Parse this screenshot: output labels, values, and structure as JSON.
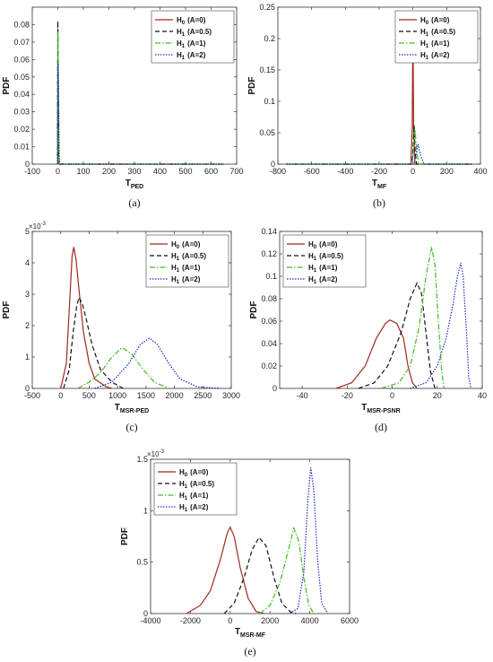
{
  "figure": {
    "legend_labels": [
      "H_0 (A=0)",
      "H_1 (A=0.5)",
      "H_1 (A=1)",
      "H_1 (A=2)"
    ],
    "series_colors": [
      "#a0281f",
      "#111111",
      "#44bb22",
      "#1a2ccc"
    ],
    "series_styles": [
      "solid",
      "dashed",
      "dashdot",
      "dotted"
    ]
  },
  "chart_data": [
    {
      "type": "line",
      "caption": "(a)",
      "xlabel": "T",
      "xlabel_sub": "PED",
      "ylabel": "PDF",
      "exponent": "",
      "xlim": [
        -100,
        700
      ],
      "ylim": [
        0,
        0.09
      ],
      "xticks": [
        "-100",
        "0",
        "100",
        "200",
        "300",
        "400",
        "500",
        "600",
        "700"
      ],
      "yticks": [
        "0",
        "0.01",
        "0.02",
        "0.03",
        "0.04",
        "0.05",
        "0.06",
        "0.07",
        "0.08"
      ],
      "legend_position": "top-right",
      "series": [
        {
          "name": "H_0 (A=0)",
          "points": [
            [
              -1,
              0
            ],
            [
              0,
              0.061
            ],
            [
              1,
              0.055
            ],
            [
              3,
              0.002
            ],
            [
              5,
              0
            ],
            [
              650,
              0
            ]
          ]
        },
        {
          "name": "H_1 (A=0.5)",
          "points": [
            [
              -1,
              0
            ],
            [
              0,
              0.082
            ],
            [
              1,
              0.07
            ],
            [
              3,
              0.003
            ],
            [
              5,
              0
            ],
            [
              650,
              0
            ]
          ]
        },
        {
          "name": "H_1 (A=1)",
          "points": [
            [
              -1,
              0
            ],
            [
              0.5,
              0.076
            ],
            [
              1.5,
              0.06
            ],
            [
              4,
              0.002
            ],
            [
              6,
              0
            ],
            [
              650,
              0
            ]
          ]
        },
        {
          "name": "H_1 (A=2)",
          "points": [
            [
              -1,
              0
            ],
            [
              1,
              0.058
            ],
            [
              2.5,
              0.045
            ],
            [
              6,
              0.002
            ],
            [
              9,
              0
            ],
            [
              650,
              0
            ]
          ]
        }
      ]
    },
    {
      "type": "line",
      "caption": "(b)",
      "xlabel": "T",
      "xlabel_sub": "MF",
      "ylabel": "PDF",
      "exponent": "",
      "xlim": [
        -800,
        400
      ],
      "ylim": [
        0,
        0.25
      ],
      "xticks": [
        "-800",
        "-600",
        "-400",
        "-200",
        "0",
        "200",
        "400"
      ],
      "yticks": [
        "0",
        "0.05",
        "0.1",
        "0.15",
        "0.2",
        "0.25"
      ],
      "legend_position": "top-right",
      "series": [
        {
          "name": "H_0 (A=0)",
          "points": [
            [
              -750,
              0
            ],
            [
              -12,
              0
            ],
            [
              -4,
              0.06
            ],
            [
              0,
              0.235
            ],
            [
              4,
              0.06
            ],
            [
              12,
              0
            ],
            [
              350,
              0
            ]
          ]
        },
        {
          "name": "H_1 (A=0.5)",
          "points": [
            [
              -750,
              0
            ],
            [
              -5,
              0
            ],
            [
              2,
              0.03
            ],
            [
              7,
              0.062
            ],
            [
              13,
              0.02
            ],
            [
              22,
              0
            ],
            [
              350,
              0
            ]
          ]
        },
        {
          "name": "H_1 (A=1)",
          "points": [
            [
              -750,
              0
            ],
            [
              -3,
              0
            ],
            [
              5,
              0.03
            ],
            [
              13,
              0.055
            ],
            [
              22,
              0.02
            ],
            [
              35,
              0
            ],
            [
              350,
              0
            ]
          ]
        },
        {
          "name": "H_1 (A=2)",
          "points": [
            [
              -750,
              0
            ],
            [
              5,
              0
            ],
            [
              18,
              0.015
            ],
            [
              30,
              0.032
            ],
            [
              45,
              0.015
            ],
            [
              65,
              0
            ],
            [
              350,
              0
            ]
          ]
        }
      ]
    },
    {
      "type": "line",
      "caption": "(c)",
      "xlabel": "T",
      "xlabel_sub": "MSR-PED",
      "ylabel": "PDF",
      "exponent": "10",
      "exponent_power": "-3",
      "xlim": [
        -500,
        3000
      ],
      "ylim": [
        0,
        0.005
      ],
      "xticks": [
        "-500",
        "0",
        "500",
        "1000",
        "1500",
        "2000",
        "2500",
        "3000"
      ],
      "yticks": [
        "0",
        "1",
        "2",
        "3",
        "4",
        "5"
      ],
      "legend_position": "top-right",
      "series": [
        {
          "name": "H_0 (A=0)",
          "points": [
            [
              0,
              0
            ],
            [
              100,
              0.0008
            ],
            [
              150,
              0.0025
            ],
            [
              200,
              0.0042
            ],
            [
              230,
              0.0045
            ],
            [
              270,
              0.0041
            ],
            [
              330,
              0.003
            ],
            [
              400,
              0.0018
            ],
            [
              500,
              0.0008
            ],
            [
              600,
              0.0003
            ],
            [
              800,
              5e-05
            ],
            [
              900,
              0
            ]
          ]
        },
        {
          "name": "H_1 (A=0.5)",
          "points": [
            [
              50,
              0
            ],
            [
              150,
              0.0006
            ],
            [
              220,
              0.0018
            ],
            [
              280,
              0.0026
            ],
            [
              320,
              0.0029
            ],
            [
              380,
              0.0027
            ],
            [
              450,
              0.0022
            ],
            [
              550,
              0.0014
            ],
            [
              700,
              0.0006
            ],
            [
              900,
              0.0002
            ],
            [
              1100,
              0
            ]
          ]
        },
        {
          "name": "H_1 (A=1)",
          "points": [
            [
              300,
              0
            ],
            [
              500,
              0.0002
            ],
            [
              700,
              0.0005
            ],
            [
              900,
              0.001
            ],
            [
              1080,
              0.0013
            ],
            [
              1250,
              0.0011
            ],
            [
              1450,
              0.0006
            ],
            [
              1650,
              0.0002
            ],
            [
              1900,
              0
            ]
          ]
        },
        {
          "name": "H_1 (A=2)",
          "points": [
            [
              600,
              0
            ],
            [
              900,
              0.0002
            ],
            [
              1200,
              0.0008
            ],
            [
              1400,
              0.0014
            ],
            [
              1560,
              0.0016
            ],
            [
              1700,
              0.0014
            ],
            [
              1900,
              0.0008
            ],
            [
              2100,
              0.0003
            ],
            [
              2400,
              5e-05
            ],
            [
              2800,
              0
            ]
          ]
        }
      ]
    },
    {
      "type": "line",
      "caption": "(d)",
      "xlabel": "T",
      "xlabel_sub": "MSR-PSNR",
      "ylabel": "PDF",
      "exponent": "",
      "xlim": [
        -50,
        40
      ],
      "ylim": [
        0,
        0.14
      ],
      "xticks": [
        "-40",
        "-20",
        "0",
        "20",
        "40"
      ],
      "yticks": [
        "0",
        "0.02",
        "0.04",
        "0.06",
        "0.08",
        "0.1",
        "0.12",
        "0.14"
      ],
      "legend_position": "top-left",
      "series": [
        {
          "name": "H_0 (A=0)",
          "points": [
            [
              -25,
              0
            ],
            [
              -18,
              0.005
            ],
            [
              -12,
              0.02
            ],
            [
              -7,
              0.045
            ],
            [
              -3,
              0.058
            ],
            [
              -1,
              0.061
            ],
            [
              2,
              0.058
            ],
            [
              5,
              0.045
            ],
            [
              7,
              0.02
            ],
            [
              9,
              0.005
            ],
            [
              11,
              0
            ]
          ]
        },
        {
          "name": "H_1 (A=0.5)",
          "points": [
            [
              -15,
              0
            ],
            [
              -8,
              0.005
            ],
            [
              -2,
              0.02
            ],
            [
              4,
              0.05
            ],
            [
              8,
              0.08
            ],
            [
              11,
              0.094
            ],
            [
              13,
              0.085
            ],
            [
              15,
              0.05
            ],
            [
              17,
              0.015
            ],
            [
              19,
              0
            ]
          ]
        },
        {
          "name": "H_1 (A=1)",
          "points": [
            [
              -5,
              0
            ],
            [
              3,
              0.005
            ],
            [
              8,
              0.02
            ],
            [
              12,
              0.055
            ],
            [
              15,
              0.1
            ],
            [
              17.5,
              0.126
            ],
            [
              19,
              0.11
            ],
            [
              20.5,
              0.06
            ],
            [
              22,
              0.015
            ],
            [
              23,
              0
            ]
          ]
        },
        {
          "name": "H_1 (A=2)",
          "points": [
            [
              8,
              0
            ],
            [
              15,
              0.005
            ],
            [
              20,
              0.02
            ],
            [
              24,
              0.045
            ],
            [
              27,
              0.075
            ],
            [
              29,
              0.1
            ],
            [
              30.5,
              0.112
            ],
            [
              31.5,
              0.1
            ],
            [
              33,
              0.05
            ],
            [
              34,
              0.01
            ],
            [
              35,
              0
            ]
          ]
        }
      ]
    },
    {
      "type": "line",
      "caption": "(e)",
      "xlabel": "T",
      "xlabel_sub": "MSR-MF",
      "ylabel": "PDF",
      "exponent": "10",
      "exponent_power": "-3",
      "xlim": [
        -4000,
        6000
      ],
      "ylim": [
        0,
        0.0015
      ],
      "xticks": [
        "-4000",
        "-2000",
        "0",
        "2000",
        "4000",
        "6000"
      ],
      "yticks": [
        "0",
        "0.5",
        "1",
        "1.5"
      ],
      "legend_position": "top-left",
      "series": [
        {
          "name": "H_0 (A=0)",
          "points": [
            [
              -2200,
              0
            ],
            [
              -1500,
              8e-05
            ],
            [
              -1000,
              0.00022
            ],
            [
              -500,
              0.00052
            ],
            [
              -150,
              0.00078
            ],
            [
              0,
              0.00084
            ],
            [
              200,
              0.00075
            ],
            [
              500,
              0.00045
            ],
            [
              900,
              0.00015
            ],
            [
              1300,
              2e-05
            ],
            [
              1700,
              0
            ]
          ]
        },
        {
          "name": "H_1 (A=0.5)",
          "points": [
            [
              -300,
              0
            ],
            [
              200,
              0.0001
            ],
            [
              700,
              0.00035
            ],
            [
              1100,
              0.00062
            ],
            [
              1450,
              0.00074
            ],
            [
              1800,
              0.00066
            ],
            [
              2200,
              0.00035
            ],
            [
              2600,
              0.0001
            ],
            [
              3000,
              2e-05
            ],
            [
              3300,
              0
            ]
          ]
        },
        {
          "name": "H_1 (A=1)",
          "points": [
            [
              1500,
              0
            ],
            [
              2000,
              8e-05
            ],
            [
              2500,
              0.0003
            ],
            [
              2900,
              0.0006
            ],
            [
              3200,
              0.00083
            ],
            [
              3450,
              0.0007
            ],
            [
              3700,
              0.00035
            ],
            [
              3950,
              8e-05
            ],
            [
              4200,
              0
            ]
          ]
        },
        {
          "name": "H_1 (A=2)",
          "points": [
            [
              3000,
              0
            ],
            [
              3400,
              5e-05
            ],
            [
              3700,
              0.0004
            ],
            [
              3900,
              0.0011
            ],
            [
              4050,
              0.00142
            ],
            [
              4200,
              0.0012
            ],
            [
              4400,
              0.0005
            ],
            [
              4600,
              0.0001
            ],
            [
              4900,
              0
            ]
          ]
        }
      ]
    }
  ]
}
